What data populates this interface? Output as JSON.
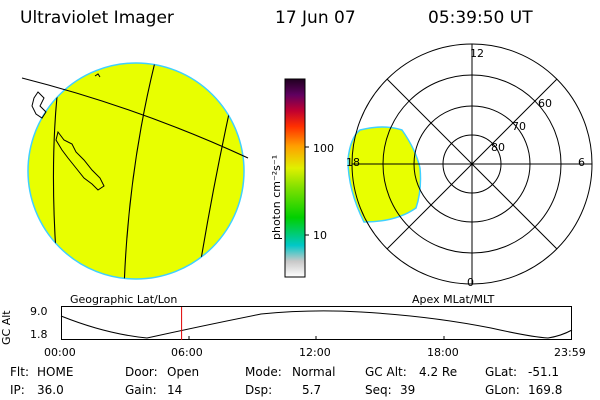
{
  "header": {
    "title": "Ultraviolet Imager",
    "date": "17 Jun 07",
    "time": "05:39:50 UT"
  },
  "colorbar": {
    "label": "photon cm⁻²s⁻¹",
    "tick_100": "100",
    "tick_10": "10",
    "colors": [
      "#ffffff",
      "#d0d0d0",
      "#00c8c8",
      "#00e000",
      "#80e000",
      "#e0f000",
      "#ffa000",
      "#ff3000",
      "#c00030",
      "#600060",
      "#200020"
    ]
  },
  "geo_map": {
    "caption": "Geographic Lat/Lon",
    "fill_color": "#e8ff00",
    "edge_color": "#40d0ff"
  },
  "polar_plot": {
    "caption": "Apex MLat/MLT",
    "mlt_labels": {
      "top": "12",
      "left": "18",
      "right": "6",
      "bottom": "0"
    },
    "lat_labels": [
      "60",
      "70",
      "80"
    ]
  },
  "orbit": {
    "ylabel": "GC Alt",
    "ytick_top": "9.0",
    "ytick_bottom": "1.8",
    "time_ticks": [
      "00:00",
      "06:00",
      "12:00",
      "18:00",
      "23:59"
    ],
    "marker_time": "05:39:50",
    "marker_color": "#e00000"
  },
  "info": {
    "flt_label": "Flt:",
    "flt_value": "HOME",
    "ip_label": "IP:",
    "ip_value": "36.0",
    "door_label": "Door:",
    "door_value": "Open",
    "gain_label": "Gain:",
    "gain_value": "14",
    "mode_label": "Mode:",
    "mode_value": "Normal",
    "dsp_label": "Dsp:",
    "dsp_value": "5.7",
    "gcalt_label": "GC Alt:",
    "gcalt_value": "4.2 Re",
    "seq_label": "Seq:",
    "seq_value": "39",
    "glat_label": "GLat:",
    "glat_value": "-51.1",
    "glon_label": "GLon:",
    "glon_value": "169.8"
  }
}
